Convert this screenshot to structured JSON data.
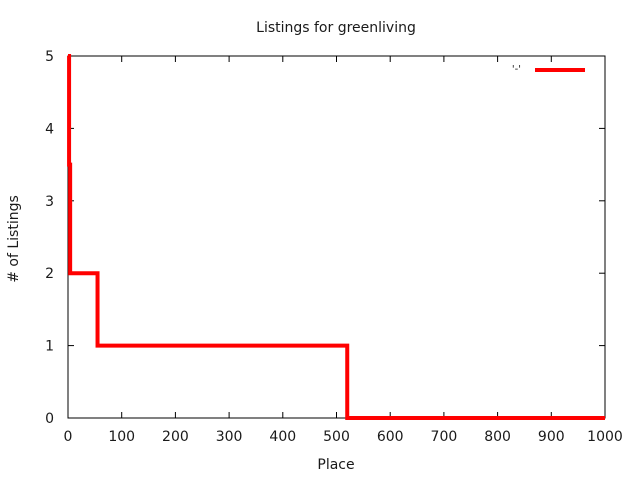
{
  "chart_data": {
    "type": "line",
    "title": "Listings for greenliving",
    "xlabel": "Place",
    "ylabel": "# of Listings",
    "xlim": [
      0,
      1000
    ],
    "ylim": [
      0,
      5
    ],
    "xticks": [
      0,
      100,
      200,
      300,
      400,
      500,
      600,
      700,
      800,
      900,
      1000
    ],
    "yticks": [
      0,
      1,
      2,
      3,
      4,
      5
    ],
    "grid": false,
    "legend_position": "top-right",
    "series": [
      {
        "name": "'-'",
        "color": "#ff0000",
        "style": "steps",
        "x": [
          0,
          1,
          2,
          4,
          55,
          520,
          1000
        ],
        "y": [
          5,
          5,
          3.5,
          2,
          1,
          0,
          0
        ]
      }
    ]
  }
}
